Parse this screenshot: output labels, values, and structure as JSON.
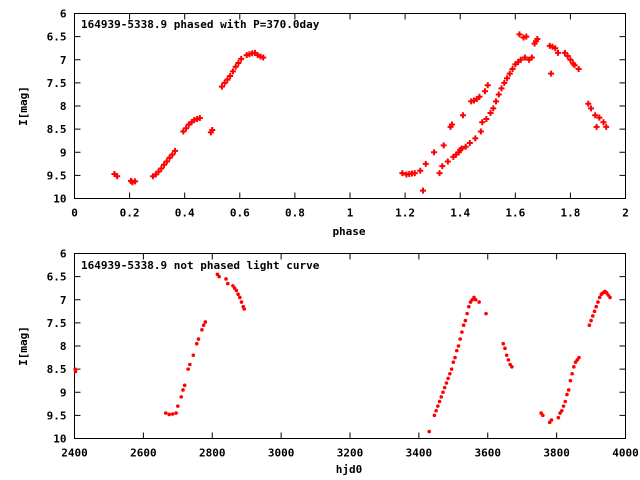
{
  "chart_data": [
    {
      "type": "scatter",
      "title": "164939-5338.9 phased with P=370.0day",
      "xlabel": "phase",
      "ylabel": "I[mag]",
      "xlim": [
        0,
        2
      ],
      "ylim": [
        6,
        10
      ],
      "y_inverted": true,
      "grid": false,
      "legend": "none",
      "marker_color": "#ff0000",
      "xticks": [
        "0",
        "0.2",
        "0.4",
        "0.6",
        "0.8",
        "1",
        "1.2",
        "1.4",
        "1.6",
        "1.8",
        "2"
      ],
      "yticks": [
        "6",
        "6.5",
        "7",
        "7.5",
        "8",
        "8.5",
        "9",
        "9.5",
        "10"
      ],
      "series": [
        {
          "points": [
            [
              0.145,
              9.47
            ],
            [
              0.155,
              9.52
            ],
            [
              0.205,
              9.62
            ],
            [
              0.21,
              9.65
            ],
            [
              0.22,
              9.63
            ],
            [
              0.285,
              9.52
            ],
            [
              0.295,
              9.48
            ],
            [
              0.305,
              9.42
            ],
            [
              0.315,
              9.35
            ],
            [
              0.325,
              9.27
            ],
            [
              0.335,
              9.2
            ],
            [
              0.345,
              9.12
            ],
            [
              0.355,
              9.05
            ],
            [
              0.365,
              8.97
            ],
            [
              0.395,
              8.55
            ],
            [
              0.405,
              8.48
            ],
            [
              0.415,
              8.4
            ],
            [
              0.425,
              8.35
            ],
            [
              0.435,
              8.3
            ],
            [
              0.445,
              8.28
            ],
            [
              0.455,
              8.26
            ],
            [
              0.495,
              8.57
            ],
            [
              0.5,
              8.52
            ],
            [
              0.535,
              7.58
            ],
            [
              0.545,
              7.5
            ],
            [
              0.555,
              7.43
            ],
            [
              0.565,
              7.35
            ],
            [
              0.575,
              7.25
            ],
            [
              0.585,
              7.15
            ],
            [
              0.595,
              7.07
            ],
            [
              0.605,
              6.98
            ],
            [
              0.625,
              6.9
            ],
            [
              0.635,
              6.88
            ],
            [
              0.645,
              6.86
            ],
            [
              0.655,
              6.85
            ],
            [
              0.665,
              6.9
            ],
            [
              0.675,
              6.93
            ],
            [
              0.685,
              6.95
            ],
            [
              1.19,
              9.45
            ],
            [
              1.205,
              9.48
            ],
            [
              1.215,
              9.47
            ],
            [
              1.225,
              9.46
            ],
            [
              1.235,
              9.45
            ],
            [
              1.255,
              9.4
            ],
            [
              1.265,
              9.83
            ],
            [
              1.275,
              9.25
            ],
            [
              1.305,
              9.0
            ],
            [
              1.325,
              9.45
            ],
            [
              1.335,
              9.3
            ],
            [
              1.34,
              8.85
            ],
            [
              1.355,
              9.2
            ],
            [
              1.365,
              8.45
            ],
            [
              1.37,
              8.4
            ],
            [
              1.375,
              9.1
            ],
            [
              1.385,
              9.05
            ],
            [
              1.395,
              9.0
            ],
            [
              1.4,
              8.95
            ],
            [
              1.405,
              8.92
            ],
            [
              1.41,
              8.2
            ],
            [
              1.42,
              8.88
            ],
            [
              1.435,
              8.8
            ],
            [
              1.44,
              7.9
            ],
            [
              1.45,
              7.88
            ],
            [
              1.455,
              8.7
            ],
            [
              1.46,
              7.85
            ],
            [
              1.47,
              7.8
            ],
            [
              1.475,
              8.55
            ],
            [
              1.48,
              8.35
            ],
            [
              1.49,
              7.68
            ],
            [
              1.495,
              8.28
            ],
            [
              1.5,
              7.55
            ],
            [
              1.51,
              8.15
            ],
            [
              1.52,
              8.05
            ],
            [
              1.53,
              7.9
            ],
            [
              1.54,
              7.75
            ],
            [
              1.55,
              7.62
            ],
            [
              1.56,
              7.5
            ],
            [
              1.57,
              7.4
            ],
            [
              1.58,
              7.3
            ],
            [
              1.59,
              7.2
            ],
            [
              1.6,
              7.1
            ],
            [
              1.61,
              7.05
            ],
            [
              1.615,
              6.45
            ],
            [
              1.62,
              7.0
            ],
            [
              1.63,
              6.52
            ],
            [
              1.635,
              6.95
            ],
            [
              1.64,
              6.5
            ],
            [
              1.65,
              7.0
            ],
            [
              1.66,
              6.95
            ],
            [
              1.67,
              6.65
            ],
            [
              1.675,
              6.6
            ],
            [
              1.68,
              6.55
            ],
            [
              1.725,
              6.7
            ],
            [
              1.73,
              7.3
            ],
            [
              1.735,
              6.72
            ],
            [
              1.745,
              6.75
            ],
            [
              1.755,
              6.85
            ],
            [
              1.78,
              6.85
            ],
            [
              1.79,
              6.92
            ],
            [
              1.8,
              7.0
            ],
            [
              1.81,
              7.08
            ],
            [
              1.815,
              7.12
            ],
            [
              1.83,
              7.2
            ],
            [
              1.865,
              7.95
            ],
            [
              1.875,
              8.05
            ],
            [
              1.89,
              8.2
            ],
            [
              1.895,
              8.45
            ],
            [
              1.905,
              8.25
            ],
            [
              1.92,
              8.35
            ],
            [
              1.93,
              8.45
            ]
          ]
        }
      ]
    },
    {
      "type": "scatter",
      "title": "164939-5338.9 not phased light curve",
      "xlabel": "hjd0",
      "ylabel": "I[mag]",
      "xlim": [
        2400,
        4000
      ],
      "ylim": [
        6,
        10
      ],
      "y_inverted": true,
      "grid": false,
      "legend": "none",
      "marker_color": "#ff0000",
      "xticks": [
        "2400",
        "2600",
        "2800",
        "3000",
        "3200",
        "3400",
        "3600",
        "3800",
        "4000"
      ],
      "yticks": [
        "6",
        "6.5",
        "7",
        "7.5",
        "8",
        "8.5",
        "9",
        "9.5",
        "10"
      ],
      "series": [
        {
          "points": [
            [
              2402,
              8.5
            ],
            [
              2403,
              8.55
            ],
            [
              2665,
              9.45
            ],
            [
              2675,
              9.48
            ],
            [
              2685,
              9.47
            ],
            [
              2695,
              9.45
            ],
            [
              2700,
              9.3
            ],
            [
              2710,
              9.1
            ],
            [
              2715,
              8.95
            ],
            [
              2720,
              8.85
            ],
            [
              2730,
              8.5
            ],
            [
              2735,
              8.4
            ],
            [
              2745,
              8.2
            ],
            [
              2755,
              7.95
            ],
            [
              2760,
              7.85
            ],
            [
              2770,
              7.65
            ],
            [
              2775,
              7.55
            ],
            [
              2780,
              7.48
            ],
            [
              2815,
              6.45
            ],
            [
              2820,
              6.5
            ],
            [
              2840,
              6.55
            ],
            [
              2845,
              6.65
            ],
            [
              2860,
              6.7
            ],
            [
              2865,
              6.75
            ],
            [
              2870,
              6.8
            ],
            [
              2875,
              6.88
            ],
            [
              2880,
              6.95
            ],
            [
              2885,
              7.05
            ],
            [
              2890,
              7.15
            ],
            [
              2893,
              7.2
            ],
            [
              3430,
              9.85
            ],
            [
              3445,
              9.5
            ],
            [
              3450,
              9.4
            ],
            [
              3455,
              9.3
            ],
            [
              3460,
              9.2
            ],
            [
              3465,
              9.1
            ],
            [
              3470,
              9.0
            ],
            [
              3475,
              8.9
            ],
            [
              3480,
              8.8
            ],
            [
              3485,
              8.7
            ],
            [
              3490,
              8.6
            ],
            [
              3495,
              8.5
            ],
            [
              3500,
              8.35
            ],
            [
              3505,
              8.25
            ],
            [
              3510,
              8.1
            ],
            [
              3515,
              8.0
            ],
            [
              3520,
              7.85
            ],
            [
              3525,
              7.7
            ],
            [
              3530,
              7.55
            ],
            [
              3535,
              7.45
            ],
            [
              3540,
              7.3
            ],
            [
              3545,
              7.15
            ],
            [
              3550,
              7.05
            ],
            [
              3555,
              7.0
            ],
            [
              3560,
              6.95
            ],
            [
              3565,
              7.0
            ],
            [
              3575,
              7.05
            ],
            [
              3595,
              7.3
            ],
            [
              3645,
              7.95
            ],
            [
              3650,
              8.05
            ],
            [
              3655,
              8.2
            ],
            [
              3660,
              8.3
            ],
            [
              3665,
              8.4
            ],
            [
              3670,
              8.45
            ],
            [
              3755,
              9.45
            ],
            [
              3760,
              9.5
            ],
            [
              3780,
              9.65
            ],
            [
              3785,
              9.6
            ],
            [
              3805,
              9.55
            ],
            [
              3810,
              9.45
            ],
            [
              3815,
              9.4
            ],
            [
              3820,
              9.3
            ],
            [
              3825,
              9.2
            ],
            [
              3830,
              9.05
            ],
            [
              3835,
              8.95
            ],
            [
              3840,
              8.75
            ],
            [
              3845,
              8.6
            ],
            [
              3850,
              8.45
            ],
            [
              3855,
              8.35
            ],
            [
              3860,
              8.3
            ],
            [
              3865,
              8.25
            ],
            [
              3895,
              7.55
            ],
            [
              3900,
              7.45
            ],
            [
              3905,
              7.35
            ],
            [
              3910,
              7.25
            ],
            [
              3915,
              7.15
            ],
            [
              3920,
              7.05
            ],
            [
              3925,
              6.95
            ],
            [
              3930,
              6.88
            ],
            [
              3935,
              6.85
            ],
            [
              3940,
              6.82
            ],
            [
              3945,
              6.85
            ],
            [
              3950,
              6.9
            ],
            [
              3955,
              6.95
            ]
          ]
        }
      ]
    }
  ]
}
